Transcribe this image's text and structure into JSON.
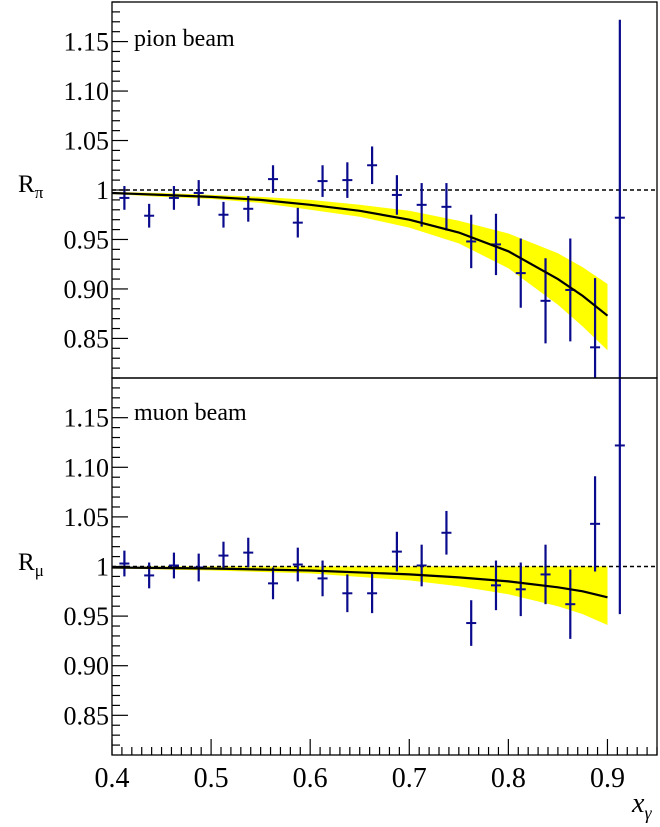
{
  "colors": {
    "data": "#0a0a8c",
    "band": "#ffff00",
    "fit": "#000000",
    "reference": "#000000"
  },
  "xaxis": {
    "label": "x",
    "label_sub": "γ",
    "ticks": [
      "0.4",
      "0.5",
      "0.6",
      "0.7",
      "0.8",
      "0.9"
    ],
    "xlim": [
      0.4,
      0.95
    ]
  },
  "chart_data": [
    {
      "type": "scatter",
      "title": "pion beam",
      "ylabel": "R",
      "ylabel_sub": "π",
      "ylim": [
        0.81,
        1.19
      ],
      "yticks": [
        "0.85",
        "0.90",
        "0.95",
        "1",
        "1.05",
        "1.10",
        "1.15"
      ],
      "reference_line": 1.0,
      "points": [
        {
          "x": 0.4125,
          "y": 0.992,
          "err": 0.012
        },
        {
          "x": 0.4375,
          "y": 0.974,
          "err": 0.012
        },
        {
          "x": 0.4625,
          "y": 0.992,
          "err": 0.012
        },
        {
          "x": 0.4875,
          "y": 0.997,
          "err": 0.013
        },
        {
          "x": 0.5125,
          "y": 0.975,
          "err": 0.013
        },
        {
          "x": 0.5375,
          "y": 0.981,
          "err": 0.013
        },
        {
          "x": 0.5625,
          "y": 1.011,
          "err": 0.014
        },
        {
          "x": 0.5875,
          "y": 0.967,
          "err": 0.015
        },
        {
          "x": 0.6125,
          "y": 1.009,
          "err": 0.016
        },
        {
          "x": 0.6375,
          "y": 1.01,
          "err": 0.018
        },
        {
          "x": 0.6625,
          "y": 1.025,
          "err": 0.019
        },
        {
          "x": 0.6875,
          "y": 0.995,
          "err": 0.02
        },
        {
          "x": 0.7125,
          "y": 0.985,
          "err": 0.022
        },
        {
          "x": 0.7375,
          "y": 0.983,
          "err": 0.024
        },
        {
          "x": 0.7625,
          "y": 0.948,
          "err": 0.027
        },
        {
          "x": 0.7875,
          "y": 0.945,
          "err": 0.031
        },
        {
          "x": 0.8125,
          "y": 0.916,
          "err": 0.035
        },
        {
          "x": 0.8375,
          "y": 0.888,
          "err": 0.043
        },
        {
          "x": 0.8625,
          "y": 0.899,
          "err": 0.052
        },
        {
          "x": 0.8875,
          "y": 0.841,
          "err": 0.07
        },
        {
          "x": 0.9125,
          "y": 0.972,
          "err": 0.2
        }
      ],
      "fit_curve": [
        {
          "x": 0.4,
          "y": 0.997
        },
        {
          "x": 0.45,
          "y": 0.995
        },
        {
          "x": 0.5,
          "y": 0.993
        },
        {
          "x": 0.55,
          "y": 0.99
        },
        {
          "x": 0.6,
          "y": 0.985
        },
        {
          "x": 0.65,
          "y": 0.979
        },
        {
          "x": 0.7,
          "y": 0.97
        },
        {
          "x": 0.75,
          "y": 0.957
        },
        {
          "x": 0.8,
          "y": 0.938
        },
        {
          "x": 0.85,
          "y": 0.91
        },
        {
          "x": 0.875,
          "y": 0.893
        },
        {
          "x": 0.9,
          "y": 0.873
        }
      ],
      "band_upper": [
        {
          "x": 0.4,
          "y": 0.998
        },
        {
          "x": 0.45,
          "y": 0.997
        },
        {
          "x": 0.5,
          "y": 0.995
        },
        {
          "x": 0.55,
          "y": 0.993
        },
        {
          "x": 0.6,
          "y": 0.99
        },
        {
          "x": 0.65,
          "y": 0.985
        },
        {
          "x": 0.7,
          "y": 0.979
        },
        {
          "x": 0.75,
          "y": 0.969
        },
        {
          "x": 0.8,
          "y": 0.956
        },
        {
          "x": 0.85,
          "y": 0.936
        },
        {
          "x": 0.875,
          "y": 0.922
        },
        {
          "x": 0.9,
          "y": 0.905
        }
      ],
      "band_lower": [
        {
          "x": 0.4,
          "y": 0.996
        },
        {
          "x": 0.45,
          "y": 0.993
        },
        {
          "x": 0.5,
          "y": 0.991
        },
        {
          "x": 0.55,
          "y": 0.987
        },
        {
          "x": 0.6,
          "y": 0.98
        },
        {
          "x": 0.65,
          "y": 0.973
        },
        {
          "x": 0.7,
          "y": 0.962
        },
        {
          "x": 0.75,
          "y": 0.946
        },
        {
          "x": 0.8,
          "y": 0.921
        },
        {
          "x": 0.85,
          "y": 0.884
        },
        {
          "x": 0.875,
          "y": 0.862
        },
        {
          "x": 0.9,
          "y": 0.838
        }
      ]
    },
    {
      "type": "scatter",
      "title": "muon beam",
      "ylabel": "R",
      "ylabel_sub": "μ",
      "ylim": [
        0.81,
        1.19
      ],
      "yticks": [
        "0.85",
        "0.90",
        "0.95",
        "1",
        "1.05",
        "1.10",
        "1.15"
      ],
      "reference_line": 1.0,
      "points": [
        {
          "x": 0.4125,
          "y": 1.003,
          "err": 0.013
        },
        {
          "x": 0.4375,
          "y": 0.991,
          "err": 0.013
        },
        {
          "x": 0.4625,
          "y": 1.001,
          "err": 0.013
        },
        {
          "x": 0.4875,
          "y": 0.999,
          "err": 0.014
        },
        {
          "x": 0.5125,
          "y": 1.011,
          "err": 0.014
        },
        {
          "x": 0.5375,
          "y": 1.014,
          "err": 0.015
        },
        {
          "x": 0.5625,
          "y": 0.983,
          "err": 0.016
        },
        {
          "x": 0.5875,
          "y": 1.002,
          "err": 0.017
        },
        {
          "x": 0.6125,
          "y": 0.988,
          "err": 0.018
        },
        {
          "x": 0.6375,
          "y": 0.973,
          "err": 0.019
        },
        {
          "x": 0.6625,
          "y": 0.973,
          "err": 0.02
        },
        {
          "x": 0.6875,
          "y": 1.015,
          "err": 0.02
        },
        {
          "x": 0.7125,
          "y": 1.001,
          "err": 0.021
        },
        {
          "x": 0.7375,
          "y": 1.034,
          "err": 0.022
        },
        {
          "x": 0.7625,
          "y": 0.943,
          "err": 0.023
        },
        {
          "x": 0.7875,
          "y": 0.981,
          "err": 0.025
        },
        {
          "x": 0.8125,
          "y": 0.977,
          "err": 0.027
        },
        {
          "x": 0.8375,
          "y": 0.992,
          "err": 0.03
        },
        {
          "x": 0.8625,
          "y": 0.962,
          "err": 0.035
        },
        {
          "x": 0.8875,
          "y": 1.043,
          "err": 0.048
        },
        {
          "x": 0.9125,
          "y": 1.122,
          "err": 0.17
        }
      ],
      "fit_curve": [
        {
          "x": 0.4,
          "y": 0.999
        },
        {
          "x": 0.5,
          "y": 0.998
        },
        {
          "x": 0.6,
          "y": 0.996
        },
        {
          "x": 0.7,
          "y": 0.992
        },
        {
          "x": 0.75,
          "y": 0.989
        },
        {
          "x": 0.8,
          "y": 0.985
        },
        {
          "x": 0.85,
          "y": 0.979
        },
        {
          "x": 0.875,
          "y": 0.975
        },
        {
          "x": 0.9,
          "y": 0.969
        }
      ],
      "band_upper": [
        {
          "x": 0.4,
          "y": 1.0
        },
        {
          "x": 0.5,
          "y": 1.0
        },
        {
          "x": 0.6,
          "y": 1.0
        },
        {
          "x": 0.7,
          "y": 1.0
        },
        {
          "x": 0.75,
          "y": 1.0
        },
        {
          "x": 0.8,
          "y": 1.0
        },
        {
          "x": 0.85,
          "y": 1.0
        },
        {
          "x": 0.875,
          "y": 1.0
        },
        {
          "x": 0.9,
          "y": 1.0
        }
      ],
      "band_lower": [
        {
          "x": 0.4,
          "y": 0.998
        },
        {
          "x": 0.5,
          "y": 0.996
        },
        {
          "x": 0.6,
          "y": 0.993
        },
        {
          "x": 0.7,
          "y": 0.986
        },
        {
          "x": 0.75,
          "y": 0.98
        },
        {
          "x": 0.8,
          "y": 0.972
        },
        {
          "x": 0.85,
          "y": 0.96
        },
        {
          "x": 0.875,
          "y": 0.952
        },
        {
          "x": 0.9,
          "y": 0.941
        }
      ]
    }
  ]
}
